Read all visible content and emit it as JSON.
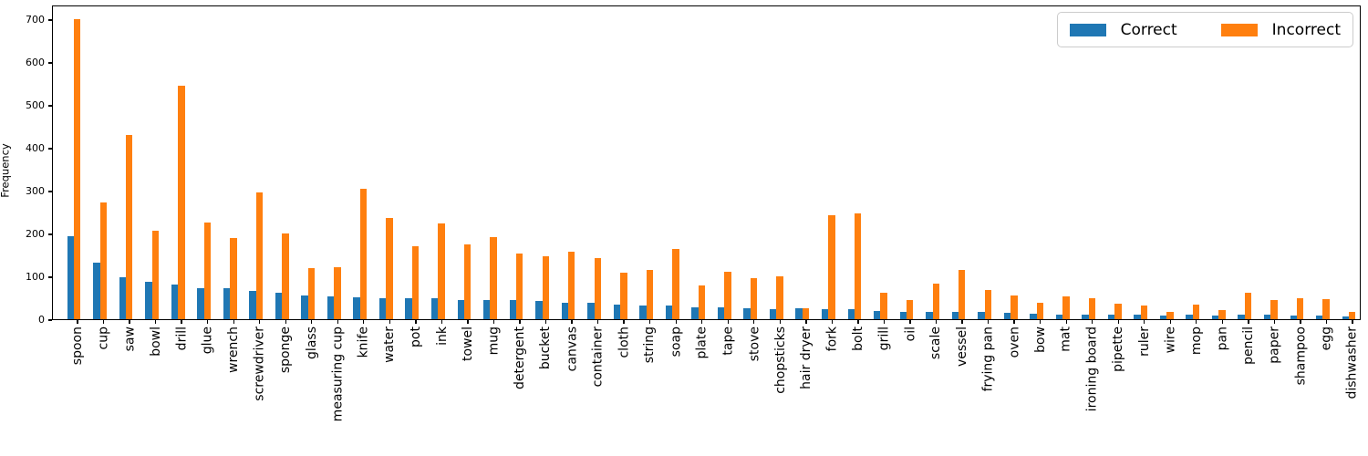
{
  "chart_data": {
    "type": "bar",
    "title": "",
    "xlabel": "",
    "ylabel": "Frequency",
    "ylim": [
      0,
      734
    ],
    "yticks": [
      0,
      100,
      200,
      300,
      400,
      500,
      600,
      700
    ],
    "grid": false,
    "legend_position": "upper right",
    "categories": [
      "spoon",
      "cup",
      "saw",
      "bowl",
      "drill",
      "glue",
      "wrench",
      "screwdriver",
      "sponge",
      "glass",
      "measuring cup",
      "knife",
      "water",
      "pot",
      "ink",
      "towel",
      "mug",
      "detergent",
      "bucket",
      "canvas",
      "container",
      "cloth",
      "string",
      "soap",
      "plate",
      "tape",
      "stove",
      "chopsticks",
      "hair dryer",
      "fork",
      "bolt",
      "grill",
      "oil",
      "scale",
      "vessel",
      "frying pan",
      "oven",
      "bow",
      "mat",
      "ironing board",
      "pipette",
      "ruler",
      "wire",
      "mop",
      "pan",
      "pencil",
      "paper",
      "shampoo",
      "egg",
      "dishwasher"
    ],
    "series": [
      {
        "name": "Correct",
        "color": "#1f77b4",
        "values": [
          193,
          132,
          97,
          88,
          80,
          73,
          73,
          65,
          61,
          56,
          53,
          52,
          50,
          50,
          48,
          45,
          44,
          44,
          43,
          39,
          38,
          35,
          33,
          32,
          28,
          28,
          26,
          23,
          25,
          23,
          23,
          20,
          18,
          18,
          18,
          16,
          15,
          13,
          11,
          10,
          10,
          10,
          9,
          10,
          9,
          10,
          10,
          8,
          8,
          7
        ]
      },
      {
        "name": "Incorrect",
        "color": "#ff7f0e",
        "values": [
          700,
          272,
          430,
          207,
          545,
          226,
          190,
          296,
          201,
          120,
          122,
          305,
          236,
          171,
          223,
          175,
          192,
          154,
          147,
          158,
          143,
          108,
          115,
          164,
          79,
          111,
          96,
          100,
          25,
          243,
          246,
          61,
          45,
          83,
          114,
          68,
          55,
          38,
          54,
          49,
          36,
          33,
          16,
          35,
          21,
          62,
          45,
          48,
          46,
          16
        ]
      }
    ]
  }
}
